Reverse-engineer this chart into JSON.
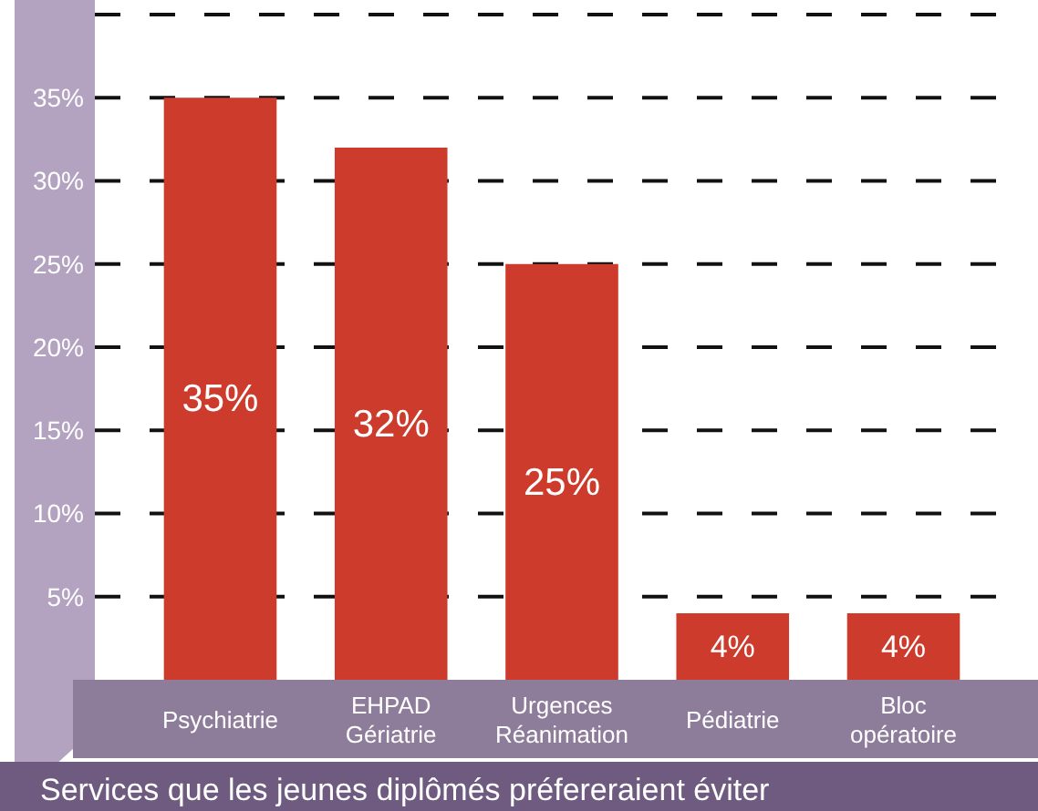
{
  "chart_data": {
    "type": "bar",
    "xlabel": "Services que les jeunes diplômés préfereraient éviter",
    "categories": [
      "Psychiatrie",
      "EHPAD Gériatrie",
      "Urgences Réanimation",
      "Pédiatrie",
      "Bloc opératoire"
    ],
    "values": [
      35,
      32,
      25,
      4,
      4
    ],
    "color": "#cc3b2b",
    "value_labels": [
      "35%",
      "32%",
      "25%",
      "4%",
      "4%"
    ],
    "ylim": [
      0,
      40
    ],
    "yticks": [
      {
        "value": 5,
        "label": "5%"
      },
      {
        "value": 10,
        "label": "10%"
      },
      {
        "value": 15,
        "label": "15%"
      },
      {
        "value": 20,
        "label": "20%"
      },
      {
        "value": 25,
        "label": "25%"
      },
      {
        "value": 30,
        "label": "30%"
      },
      {
        "value": 35,
        "label": "35%"
      },
      {
        "value": 40,
        "label": null
      }
    ],
    "grid": "y"
  }
}
